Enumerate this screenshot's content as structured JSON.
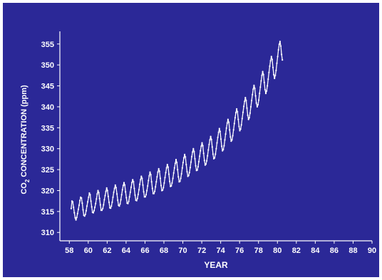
{
  "chart_data": {
    "type": "line",
    "title": "",
    "xlabel": "YEAR",
    "ylabel": "CO2 CONCENTRATION (ppm)",
    "ylabel_parts": {
      "pre": "CO",
      "sub": "2",
      "post": " CONCENTRATION (ppm)"
    },
    "xlim": [
      57,
      90
    ],
    "ylim": [
      308,
      357
    ],
    "xticks": [
      "58",
      "60",
      "62",
      "64",
      "66",
      "68",
      "70",
      "72",
      "74",
      "76",
      "78",
      "80",
      "82",
      "84",
      "86",
      "88",
      "90"
    ],
    "yticks": [
      "310",
      "315",
      "320",
      "325",
      "330",
      "335",
      "340",
      "345",
      "350",
      "355"
    ],
    "grid": false,
    "legend": "none",
    "series": [
      {
        "values_desc": "monthly means, seasonal cycle",
        "start_year": 1958.2,
        "step": 0.0833,
        "y": [
          315.7,
          317.5,
          317.3,
          316.0,
          314.7,
          313.5,
          313.0,
          313.6,
          314.5,
          315.5,
          316.5,
          317.6,
          318.4,
          318.2,
          317.0,
          315.4,
          314.1,
          313.9,
          314.3,
          315.2,
          316.3,
          317.3,
          318.4,
          319.4,
          319.0,
          317.5,
          316.1,
          314.8,
          314.7,
          315.2,
          316.0,
          316.9,
          318.0,
          319.2,
          320.0,
          319.5,
          318.1,
          316.6,
          315.3,
          315.3,
          315.7,
          316.6,
          317.8,
          318.8,
          319.8,
          320.6,
          320.0,
          318.6,
          317.2,
          315.9,
          315.8,
          316.3,
          317.2,
          318.4,
          319.6,
          320.5,
          321.3,
          320.7,
          319.2,
          317.7,
          316.5,
          316.3,
          316.8,
          317.8,
          319.0,
          320.2,
          321.2,
          321.9,
          321.3,
          319.7,
          318.3,
          317.0,
          316.9,
          317.4,
          318.5,
          319.6,
          320.8,
          321.9,
          322.6,
          322.1,
          320.5,
          318.9,
          317.7,
          317.6,
          318.1,
          319.1,
          320.2,
          321.5,
          322.6,
          323.4,
          322.9,
          321.3,
          319.7,
          318.5,
          318.5,
          319.0,
          320.0,
          321.1,
          322.4,
          323.5,
          324.4,
          323.8,
          322.1,
          320.5,
          319.3,
          319.3,
          319.8,
          320.9,
          322.1,
          323.3,
          324.4,
          325.2,
          324.6,
          322.9,
          321.2,
          320.0,
          320.1,
          320.7,
          321.8,
          323.1,
          324.3,
          325.4,
          326.2,
          325.6,
          323.9,
          322.2,
          321.0,
          321.1,
          321.8,
          322.9,
          324.2,
          325.4,
          326.5,
          327.4,
          326.7,
          325.0,
          323.3,
          322.1,
          322.2,
          322.9,
          324.0,
          325.4,
          326.7,
          327.8,
          328.6,
          328.0,
          326.2,
          324.5,
          323.4,
          323.6,
          324.3,
          325.5,
          326.8,
          328.1,
          329.2,
          330.0,
          329.3,
          327.6,
          325.9,
          324.8,
          324.9,
          325.7,
          326.9,
          328.2,
          329.5,
          330.6,
          331.4,
          330.7,
          328.9,
          327.2,
          326.1,
          326.3,
          327.1,
          328.3,
          329.7,
          331.0,
          332.1,
          332.9,
          332.2,
          330.4,
          328.7,
          327.6,
          327.8,
          328.7,
          330.0,
          331.4,
          332.7,
          333.9,
          334.8,
          334.1,
          332.3,
          330.6,
          329.5,
          329.8,
          330.7,
          332.1,
          333.5,
          334.9,
          336.1,
          337.0,
          336.3,
          334.5,
          332.8,
          331.8,
          332.1,
          333.1,
          334.5,
          336.0,
          337.4,
          338.6,
          339.5,
          338.8,
          337.0,
          335.3,
          334.3,
          334.7,
          335.7,
          337.2,
          338.7,
          340.1,
          341.3,
          342.2,
          341.5,
          339.7,
          338.0,
          337.0,
          337.4,
          338.5,
          340.0,
          341.5,
          342.9,
          344.2,
          345.1,
          344.4,
          342.6,
          340.9,
          340.0,
          340.5,
          341.6,
          343.2,
          344.7,
          346.2,
          347.5,
          348.4,
          347.7,
          345.8,
          344.1,
          343.2,
          343.8,
          345.0,
          346.6,
          348.2,
          349.7,
          351.0,
          352.0,
          351.3,
          349.4,
          347.7,
          346.8,
          347.5,
          348.7,
          350.4,
          352.0,
          353.6,
          354.9,
          355.6,
          354.5,
          352.5,
          351.2
        ]
      }
    ],
    "colors": {
      "background": "#2b2897",
      "foreground": "#ffffff",
      "paper": "#ffffff"
    }
  }
}
